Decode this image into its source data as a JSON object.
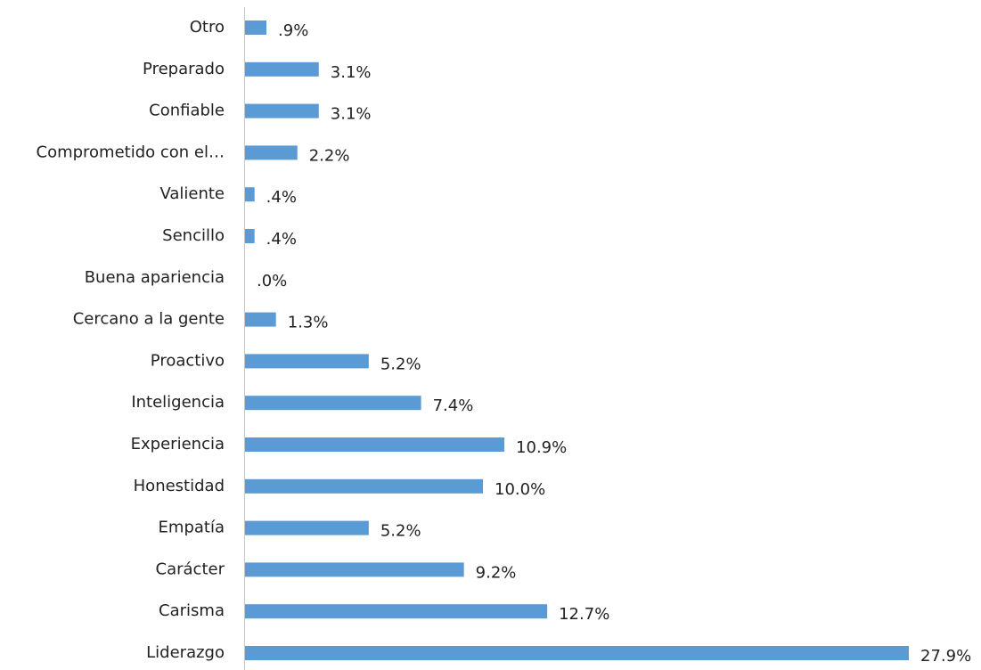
{
  "chart_data": {
    "type": "hbar",
    "color": "#5b9bd5",
    "categories": [
      "Otro",
      "Preparado",
      "Confiable",
      "Comprometido con el…",
      "Valiente",
      "Sencillo",
      "Buena apariencia",
      "Cercano a la gente",
      "Proactivo",
      "Inteligencia",
      "Experiencia",
      "Honestidad",
      "Empatía",
      "Carácter",
      "Carisma",
      "Liderazgo"
    ],
    "values": [
      0.9,
      3.1,
      3.1,
      2.2,
      0.4,
      0.4,
      0.0,
      1.3,
      5.2,
      7.4,
      10.9,
      10.0,
      5.2,
      9.2,
      12.7,
      27.9
    ],
    "value_labels": [
      ".9%",
      "3.1%",
      "3.1%",
      "2.2%",
      ".4%",
      ".4%",
      ".0%",
      "1.3%",
      "5.2%",
      "7.4%",
      "10.9%",
      "10.0%",
      "5.2%",
      "9.2%",
      "12.7%",
      "27.9%"
    ]
  }
}
